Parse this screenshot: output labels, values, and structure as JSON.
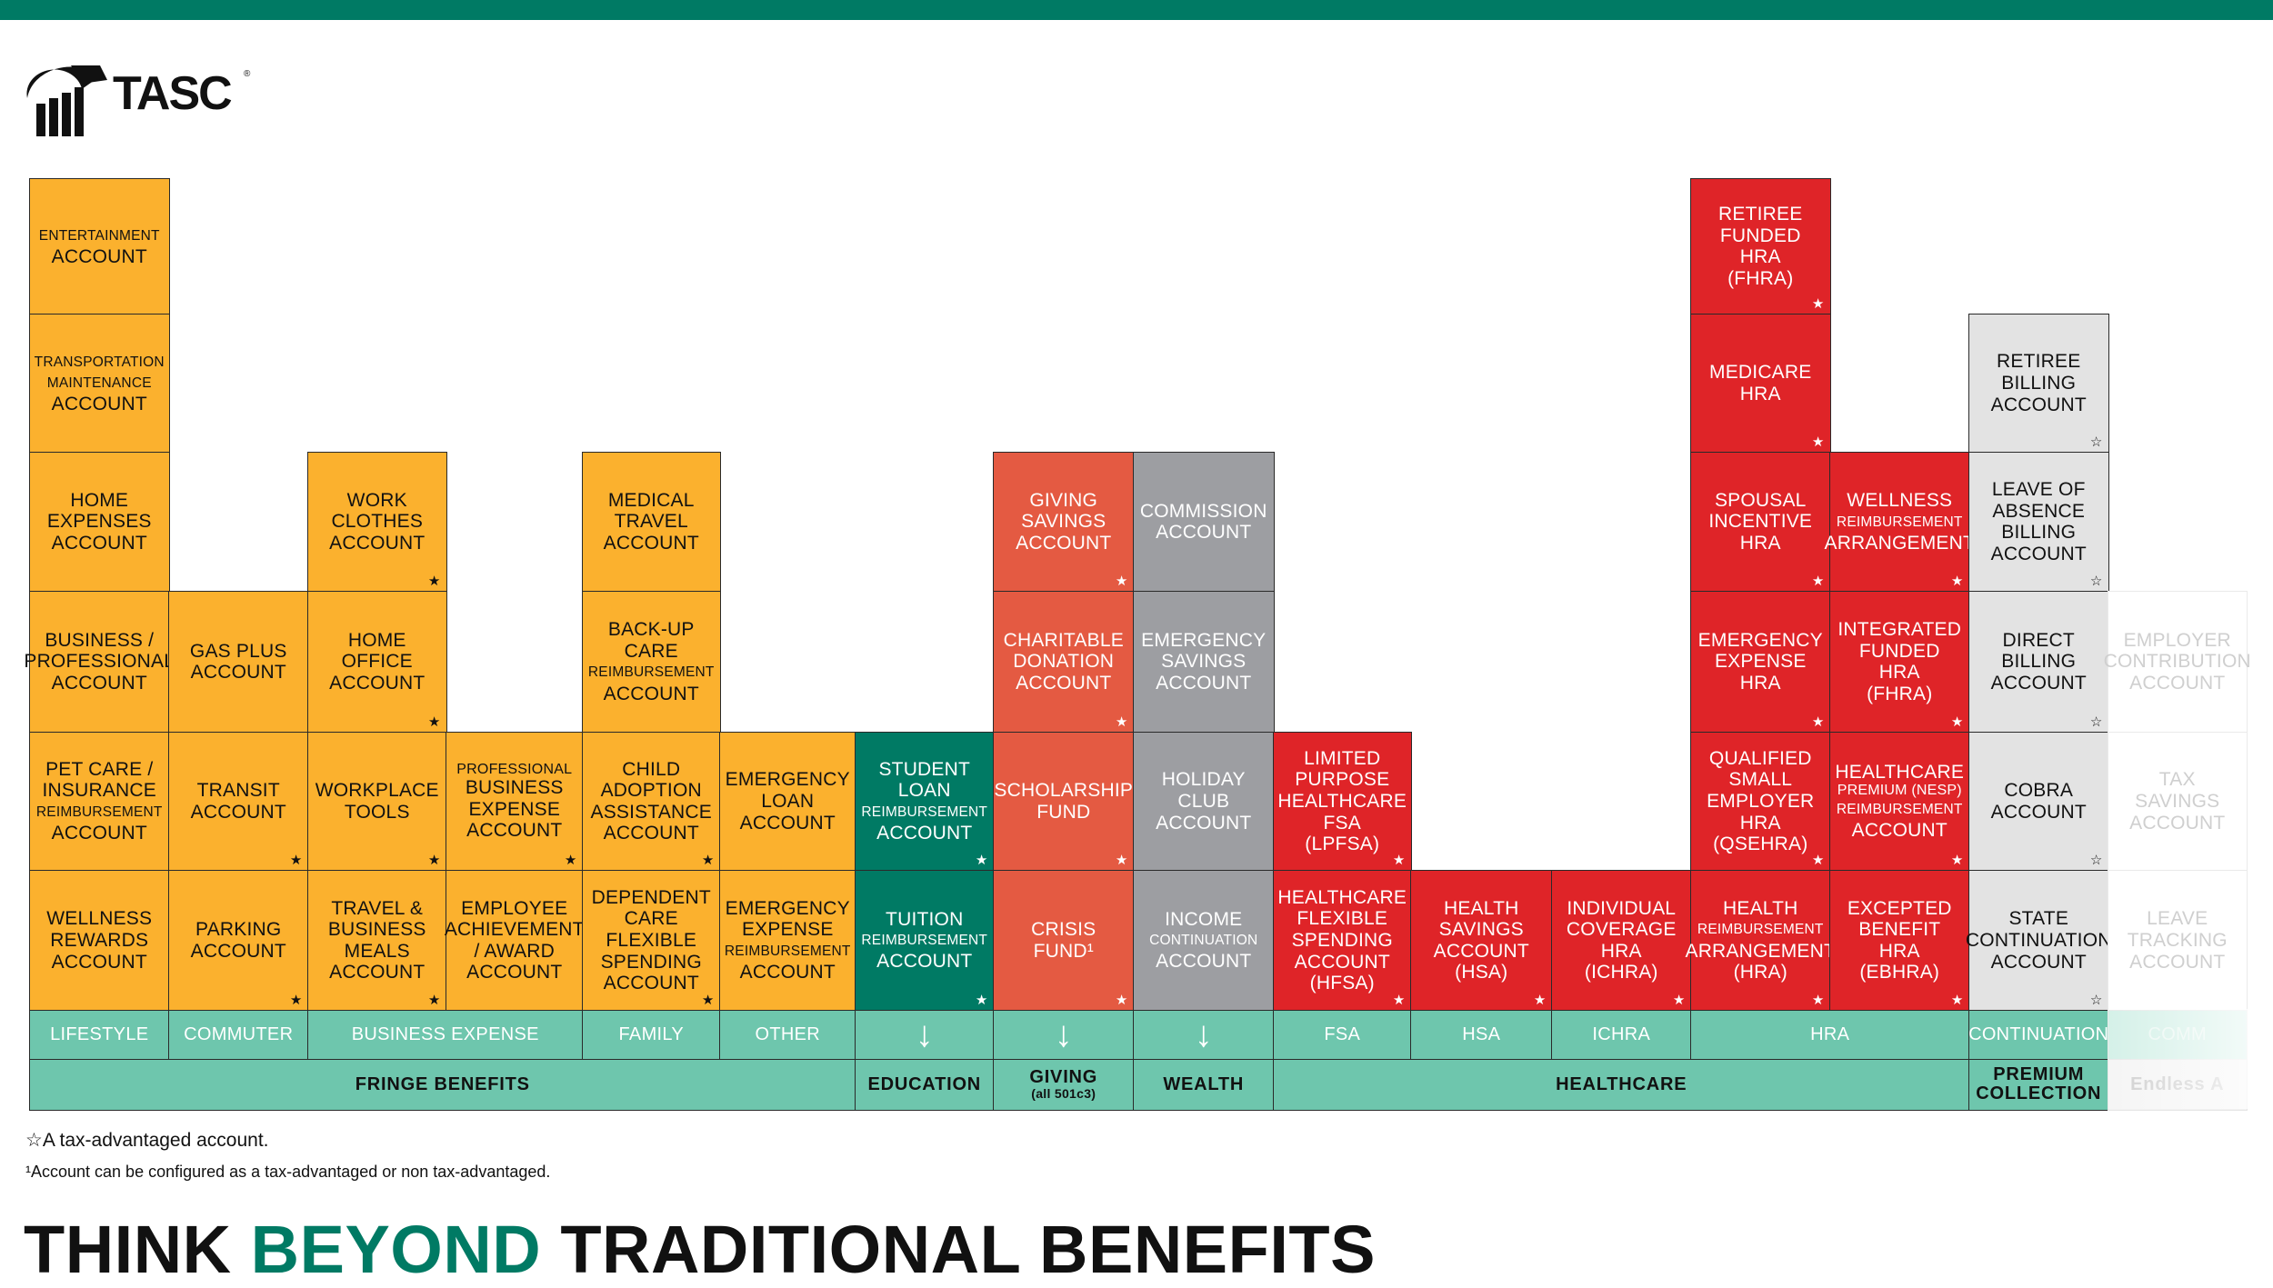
{
  "brand": {
    "logo_text": "TASC",
    "accent": "#007a64"
  },
  "cells": {
    "lifestyle": [
      {
        "id": "entertainment",
        "lines": [
          {
            "t": "ENTERTAINMENT",
            "s": "sm"
          },
          {
            "t": "ACCOUNT"
          }
        ],
        "star": ""
      },
      {
        "id": "transport-maint",
        "lines": [
          {
            "t": "TRANSPORTATION",
            "s": "sm"
          },
          {
            "t": "MAINTENANCE",
            "s": "sm"
          },
          {
            "t": "ACCOUNT"
          }
        ],
        "star": ""
      },
      {
        "id": "home-expenses",
        "lines": [
          {
            "t": "HOME"
          },
          {
            "t": "EXPENSES"
          },
          {
            "t": "ACCOUNT"
          }
        ],
        "star": ""
      },
      {
        "id": "business-prof",
        "lines": [
          {
            "t": "BUSINESS /"
          },
          {
            "t": "PROFESSIONAL"
          },
          {
            "t": "ACCOUNT"
          }
        ],
        "star": ""
      },
      {
        "id": "pet-care",
        "lines": [
          {
            "t": "PET CARE /"
          },
          {
            "t": "INSURANCE"
          },
          {
            "t": "REIMBURSEMENT",
            "s": "sm"
          },
          {
            "t": "ACCOUNT"
          }
        ],
        "star": ""
      },
      {
        "id": "wellness-rewards",
        "lines": [
          {
            "t": "WELLNESS"
          },
          {
            "t": "REWARDS"
          },
          {
            "t": "ACCOUNT"
          }
        ],
        "star": ""
      }
    ],
    "commuter": [
      {
        "id": "gas-plus",
        "lines": [
          {
            "t": "GAS PLUS"
          },
          {
            "t": "ACCOUNT"
          }
        ],
        "star": ""
      },
      {
        "id": "transit",
        "lines": [
          {
            "t": "TRANSIT"
          },
          {
            "t": "ACCOUNT"
          }
        ],
        "star": "★"
      },
      {
        "id": "parking",
        "lines": [
          {
            "t": "PARKING"
          },
          {
            "t": "ACCOUNT"
          }
        ],
        "star": "★"
      }
    ],
    "business1": [
      {
        "id": "work-clothes",
        "lines": [
          {
            "t": "WORK"
          },
          {
            "t": "CLOTHES"
          },
          {
            "t": "ACCOUNT"
          }
        ],
        "star": "★"
      },
      {
        "id": "home-office",
        "lines": [
          {
            "t": "HOME"
          },
          {
            "t": "OFFICE"
          },
          {
            "t": "ACCOUNT"
          }
        ],
        "star": "★"
      },
      {
        "id": "workplace-tools",
        "lines": [
          {
            "t": "WORKPLACE"
          },
          {
            "t": "TOOLS"
          }
        ],
        "star": "★"
      },
      {
        "id": "travel-meals",
        "lines": [
          {
            "t": "TRAVEL &"
          },
          {
            "t": "BUSINESS"
          },
          {
            "t": "MEALS"
          },
          {
            "t": "ACCOUNT"
          }
        ],
        "star": "★"
      }
    ],
    "business2": [
      {
        "id": "prof-business",
        "lines": [
          {
            "t": "PROFESSIONAL",
            "s": "xs"
          },
          {
            "t": "BUSINESS"
          },
          {
            "t": "EXPENSE"
          },
          {
            "t": "ACCOUNT"
          }
        ],
        "star": "★"
      },
      {
        "id": "employee-achievement",
        "lines": [
          {
            "t": "EMPLOYEE"
          },
          {
            "t": "ACHIEVEMENT"
          },
          {
            "t": "/ AWARD"
          },
          {
            "t": "ACCOUNT"
          }
        ],
        "star": ""
      }
    ],
    "family": [
      {
        "id": "medical-travel",
        "lines": [
          {
            "t": "MEDICAL"
          },
          {
            "t": "TRAVEL"
          },
          {
            "t": "ACCOUNT"
          }
        ],
        "star": ""
      },
      {
        "id": "backup-care",
        "lines": [
          {
            "t": "BACK-UP CARE"
          },
          {
            "t": "REIMBURSEMENT",
            "s": "sm"
          },
          {
            "t": "ACCOUNT"
          }
        ],
        "star": ""
      },
      {
        "id": "child-adoption",
        "lines": [
          {
            "t": "CHILD"
          },
          {
            "t": "ADOPTION"
          },
          {
            "t": "ASSISTANCE"
          },
          {
            "t": "ACCOUNT"
          }
        ],
        "star": "★"
      },
      {
        "id": "dependent-care",
        "lines": [
          {
            "t": "DEPENDENT"
          },
          {
            "t": "CARE"
          },
          {
            "t": "FLEXIBLE"
          },
          {
            "t": "SPENDING"
          },
          {
            "t": "ACCOUNT"
          }
        ],
        "star": "★"
      }
    ],
    "other": [
      {
        "id": "emergency-loan",
        "lines": [
          {
            "t": "EMERGENCY"
          },
          {
            "t": "LOAN"
          },
          {
            "t": "ACCOUNT"
          }
        ],
        "star": ""
      },
      {
        "id": "emergency-expense",
        "lines": [
          {
            "t": "EMERGENCY"
          },
          {
            "t": "EXPENSE"
          },
          {
            "t": "REIMBURSEMENT",
            "s": "sm"
          },
          {
            "t": "ACCOUNT"
          }
        ],
        "star": ""
      }
    ],
    "education": [
      {
        "id": "student-loan",
        "lines": [
          {
            "t": "STUDENT"
          },
          {
            "t": "LOAN"
          },
          {
            "t": "REIMBURSEMENT",
            "s": "sm"
          },
          {
            "t": "ACCOUNT"
          }
        ],
        "star": "★"
      },
      {
        "id": "tuition",
        "lines": [
          {
            "t": "TUITION"
          },
          {
            "t": "REIMBURSEMENT",
            "s": "sm"
          },
          {
            "t": "ACCOUNT"
          }
        ],
        "star": "★"
      }
    ],
    "giving": [
      {
        "id": "giving-savings",
        "lines": [
          {
            "t": "GIVING"
          },
          {
            "t": "SAVINGS"
          },
          {
            "t": "ACCOUNT"
          }
        ],
        "star": "★"
      },
      {
        "id": "charitable",
        "lines": [
          {
            "t": "CHARITABLE"
          },
          {
            "t": "DONATION"
          },
          {
            "t": "ACCOUNT"
          }
        ],
        "star": "★"
      },
      {
        "id": "scholarship",
        "lines": [
          {
            "t": "SCHOLARSHIP"
          },
          {
            "t": "FUND"
          }
        ],
        "star": "★"
      },
      {
        "id": "crisis",
        "lines": [
          {
            "t": "CRISIS"
          },
          {
            "t": "FUND¹"
          }
        ],
        "star": "★"
      }
    ],
    "wealth": [
      {
        "id": "commission",
        "lines": [
          {
            "t": "COMMISSION"
          },
          {
            "t": "ACCOUNT"
          }
        ],
        "star": ""
      },
      {
        "id": "emergency-savings",
        "lines": [
          {
            "t": "EMERGENCY"
          },
          {
            "t": "SAVINGS"
          },
          {
            "t": "ACCOUNT"
          }
        ],
        "star": ""
      },
      {
        "id": "holiday-club",
        "lines": [
          {
            "t": "HOLIDAY"
          },
          {
            "t": "CLUB"
          },
          {
            "t": "ACCOUNT"
          }
        ],
        "star": ""
      },
      {
        "id": "income-continuation",
        "lines": [
          {
            "t": "INCOME"
          },
          {
            "t": "CONTINUATION",
            "s": "sm"
          },
          {
            "t": "ACCOUNT"
          }
        ],
        "star": ""
      }
    ],
    "fsa": [
      {
        "id": "lpfsa",
        "lines": [
          {
            "t": "LIMITED"
          },
          {
            "t": "PURPOSE"
          },
          {
            "t": "HEALTHCARE"
          },
          {
            "t": "FSA"
          },
          {
            "t": "(LPFSA)"
          }
        ],
        "star": "★"
      },
      {
        "id": "hfsa",
        "lines": [
          {
            "t": "HEALTHCARE"
          },
          {
            "t": "FLEXIBLE"
          },
          {
            "t": "SPENDING"
          },
          {
            "t": "ACCOUNT"
          },
          {
            "t": "(HFSA)"
          }
        ],
        "star": "★"
      }
    ],
    "hsa": [
      {
        "id": "hsa",
        "lines": [
          {
            "t": "HEALTH"
          },
          {
            "t": "SAVINGS"
          },
          {
            "t": "ACCOUNT"
          },
          {
            "t": "(HSA)"
          }
        ],
        "star": "★"
      }
    ],
    "ichra": [
      {
        "id": "ichra",
        "lines": [
          {
            "t": "INDIVIDUAL"
          },
          {
            "t": "COVERAGE"
          },
          {
            "t": "HRA"
          },
          {
            "t": "(ICHRA)"
          }
        ],
        "star": "★"
      }
    ],
    "hra1": [
      {
        "id": "retiree-hra",
        "lines": [
          {
            "t": "RETIREE"
          },
          {
            "t": "FUNDED"
          },
          {
            "t": "HRA"
          },
          {
            "t": "(FHRA)"
          }
        ],
        "star": "★"
      },
      {
        "id": "medicare-hra",
        "lines": [
          {
            "t": "MEDICARE"
          },
          {
            "t": "HRA"
          }
        ],
        "star": "★"
      },
      {
        "id": "spousal-hra",
        "lines": [
          {
            "t": "SPOUSAL"
          },
          {
            "t": "INCENTIVE"
          },
          {
            "t": "HRA"
          }
        ],
        "star": "★"
      },
      {
        "id": "emergency-hra",
        "lines": [
          {
            "t": "EMERGENCY"
          },
          {
            "t": "EXPENSE"
          },
          {
            "t": "HRA"
          }
        ],
        "star": "★"
      },
      {
        "id": "qsehra",
        "lines": [
          {
            "t": "QUALIFIED"
          },
          {
            "t": "SMALL"
          },
          {
            "t": "EMPLOYER"
          },
          {
            "t": "HRA"
          },
          {
            "t": "(QSEHRA)"
          }
        ],
        "star": "★"
      },
      {
        "id": "hra",
        "lines": [
          {
            "t": "HEALTH"
          },
          {
            "t": "REIMBURSEMENT",
            "s": "sm"
          },
          {
            "t": "ARRANGEMENT"
          },
          {
            "t": "(HRA)"
          }
        ],
        "star": "★"
      }
    ],
    "hra2": [
      {
        "id": "wellness-hra",
        "lines": [
          {
            "t": "WELLNESS"
          },
          {
            "t": "REIMBURSEMENT",
            "s": "sm"
          },
          {
            "t": "ARRANGEMENT"
          }
        ],
        "star": "★"
      },
      {
        "id": "integrated-hra",
        "lines": [
          {
            "t": "INTEGRATED"
          },
          {
            "t": "FUNDED"
          },
          {
            "t": "HRA"
          },
          {
            "t": "(FHRA)"
          }
        ],
        "star": "★"
      },
      {
        "id": "healthcare-premium",
        "lines": [
          {
            "t": "HEALTHCARE"
          },
          {
            "t": "PREMIUM (NESP)",
            "s": "xs"
          },
          {
            "t": "REIMBURSEMENT",
            "s": "sm"
          },
          {
            "t": "ACCOUNT"
          }
        ],
        "star": "★"
      },
      {
        "id": "ebhra",
        "lines": [
          {
            "t": "EXCEPTED"
          },
          {
            "t": "BENEFIT"
          },
          {
            "t": "HRA"
          },
          {
            "t": "(EBHRA)"
          }
        ],
        "star": "★"
      }
    ],
    "continuation": [
      {
        "id": "retiree-billing",
        "lines": [
          {
            "t": "RETIREE"
          },
          {
            "t": "BILLING"
          },
          {
            "t": "ACCOUNT"
          }
        ],
        "star": "☆"
      },
      {
        "id": "leave-billing",
        "lines": [
          {
            "t": "LEAVE OF"
          },
          {
            "t": "ABSENCE"
          },
          {
            "t": "BILLING"
          },
          {
            "t": "ACCOUNT"
          }
        ],
        "star": "☆"
      },
      {
        "id": "direct-billing",
        "lines": [
          {
            "t": "DIRECT"
          },
          {
            "t": "BILLING"
          },
          {
            "t": "ACCOUNT"
          }
        ],
        "star": "☆"
      },
      {
        "id": "cobra",
        "lines": [
          {
            "t": "COBRA"
          },
          {
            "t": "ACCOUNT"
          }
        ],
        "star": "☆"
      },
      {
        "id": "state-continuation",
        "lines": [
          {
            "t": "STATE"
          },
          {
            "t": "CONTINUATION"
          },
          {
            "t": "ACCOUNT"
          }
        ],
        "star": "☆"
      }
    ],
    "faded": [
      {
        "id": "faded-1",
        "lines": [
          {
            "t": "EMPLOYER"
          },
          {
            "t": "CONTRIBUTION"
          },
          {
            "t": "ACCOUNT"
          }
        ],
        "star": ""
      },
      {
        "id": "faded-2",
        "lines": [
          {
            "t": "TAX"
          },
          {
            "t": "SAVINGS"
          },
          {
            "t": "ACCOUNT"
          }
        ],
        "star": ""
      },
      {
        "id": "faded-3",
        "lines": [
          {
            "t": "LEAVE"
          },
          {
            "t": "TRACKING"
          },
          {
            "t": "ACCOUNT"
          }
        ],
        "star": ""
      }
    ]
  },
  "categories": {
    "lifestyle": "LIFESTYLE",
    "commuter": "COMMUTER",
    "business": "BUSINESS EXPENSE",
    "family": "FAMILY",
    "other": "OTHER",
    "education_arrow": "↓",
    "giving_arrow": "↓",
    "wealth_arrow": "↓",
    "fsa": "FSA",
    "hsa": "HSA",
    "ichra": "ICHRA",
    "hra": "HRA",
    "continuation": "CONTINUATION",
    "faded": "COMM"
  },
  "groups": {
    "fringe": "FRINGE BENEFITS",
    "education": "EDUCATION",
    "giving": "GIVING",
    "giving_sub": "(all 501c3)",
    "wealth": "WEALTH",
    "healthcare": "HEALTHCARE",
    "premium1": "PREMIUM",
    "premium2": "COLLECTION",
    "endless": "Endless A"
  },
  "notes": {
    "tax_star": "☆",
    "tax_text": "A tax-advantaged account.",
    "config_text": "¹Account can be configured as a tax-advantaged or non tax-advantaged."
  },
  "headline": {
    "part1": "THINK ",
    "part2": "BEYOND",
    "part3": " TRADITIONAL BENEFITS"
  }
}
